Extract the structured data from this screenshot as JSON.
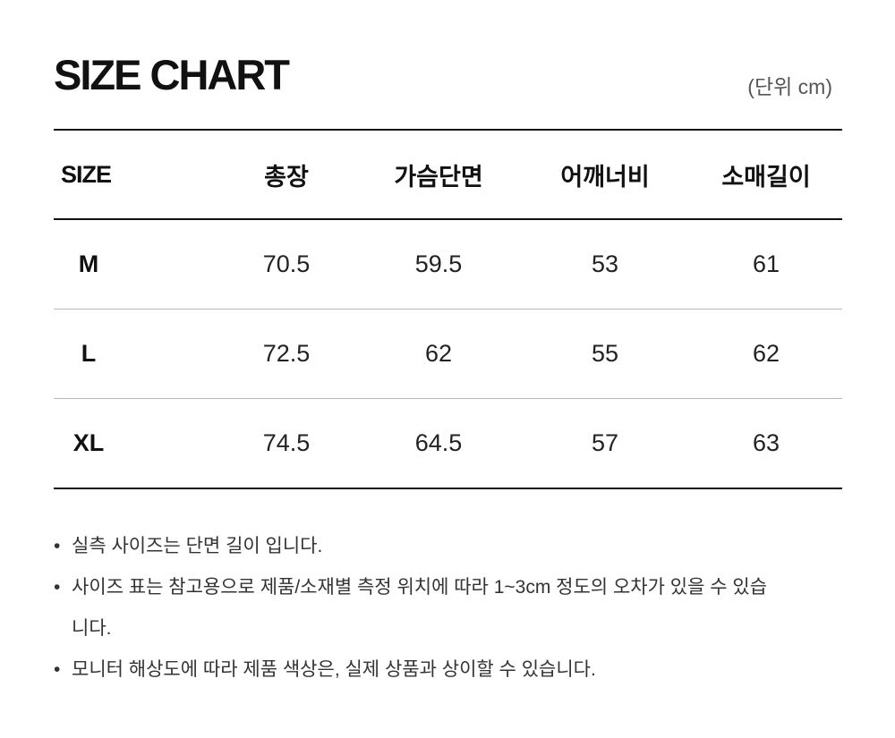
{
  "title": "SIZE CHART",
  "unit": "(단위 cm)",
  "table": {
    "headers": [
      "SIZE",
      "총장",
      "가슴단면",
      "어깨너비",
      "소매길이"
    ],
    "rows": [
      [
        "M",
        "70.5",
        "59.5",
        "53",
        "61"
      ],
      [
        "L",
        "72.5",
        "62",
        "55",
        "62"
      ],
      [
        "XL",
        "74.5",
        "64.5",
        "57",
        "63"
      ]
    ]
  },
  "notes": [
    "실측 사이즈는 단면 길이 입니다.",
    "사이즈 표는 참고용으로 제품/소재별 측정 위치에 따라 1~3cm 정도의 오차가 있을 수 있습니다.",
    "모니터 해상도에 따라 제품 색상은, 실제 상품과 상이할 수 있습니다."
  ],
  "bullet": "•"
}
